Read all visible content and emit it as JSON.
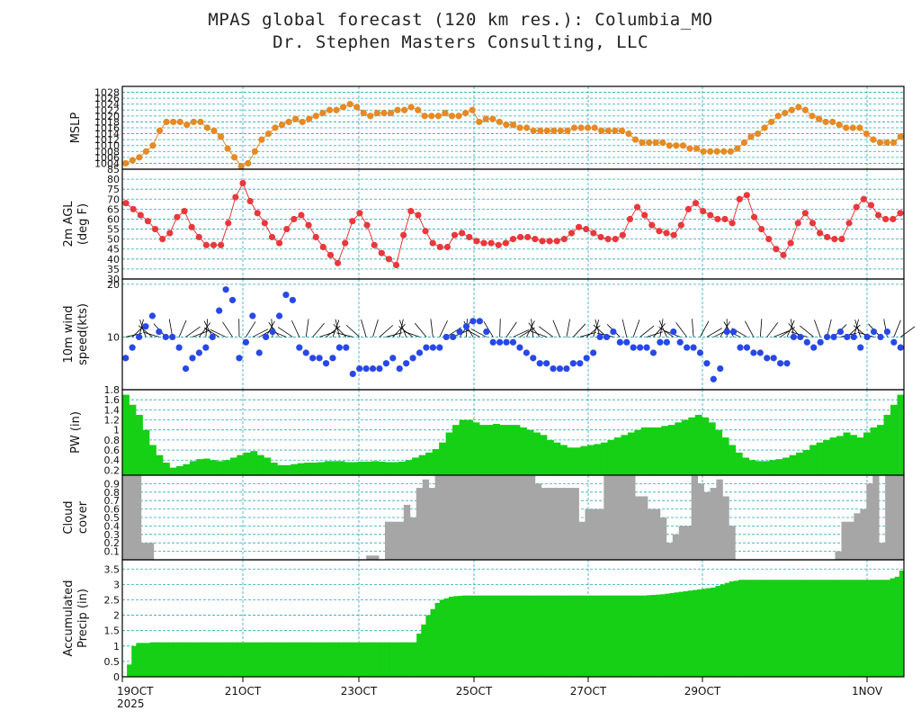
{
  "header": {
    "title": "MPAS global forecast (120 km res.): Columbia_MO",
    "subtitle": "Dr. Stephen Masters Consulting, LLC"
  },
  "colors": {
    "grid": "#2aa7b8",
    "mslp": "#e58a25",
    "temp": "#e8383c",
    "wind": "#2848e6",
    "pw": "#15d015",
    "cloud": "#a6a6a6",
    "precip": "#15d015"
  },
  "chart_data": [
    {
      "id": "mslp",
      "type": "line",
      "ylabel": [
        "MSLP"
      ],
      "ylim": [
        1002,
        1030
      ],
      "yticks": [
        1004,
        1006,
        1008,
        1010,
        1012,
        1014,
        1016,
        1018,
        1020,
        1022,
        1024,
        1026,
        1028
      ],
      "ytick_labels": [
        "1004",
        "1006",
        "1008",
        "1010",
        "1012",
        "1014",
        "1016",
        "1018",
        "1020",
        "1022",
        "1024",
        "1026",
        "1028"
      ],
      "values": [
        1004,
        1005,
        1006,
        1008,
        1010,
        1015,
        1018,
        1018,
        1018,
        1017,
        1018,
        1018,
        1016,
        1015,
        1013,
        1009,
        1006,
        1003,
        1004,
        1008,
        1012,
        1014,
        1016,
        1017,
        1018,
        1019,
        1018,
        1019,
        1020,
        1021,
        1022,
        1022,
        1023,
        1024,
        1023,
        1021,
        1020,
        1021,
        1021,
        1021,
        1022,
        1022,
        1023,
        1022,
        1020,
        1020,
        1020,
        1021,
        1020,
        1020,
        1021,
        1022,
        1018,
        1019,
        1019,
        1018,
        1017,
        1017,
        1016,
        1016,
        1015,
        1015,
        1015,
        1015,
        1015,
        1015,
        1016,
        1016,
        1016,
        1016,
        1015,
        1015,
        1015,
        1015,
        1014,
        1012,
        1011,
        1011,
        1011,
        1011,
        1010,
        1010,
        1010,
        1009,
        1009,
        1008,
        1008,
        1008,
        1008,
        1008,
        1009,
        1011,
        1013,
        1014,
        1016,
        1018,
        1020,
        1021,
        1022,
        1023,
        1022,
        1020,
        1019,
        1018,
        1018,
        1017,
        1016,
        1016,
        1016,
        1014,
        1012,
        1011,
        1011,
        1011,
        1013
      ]
    },
    {
      "id": "temp",
      "type": "line",
      "ylabel": [
        "2m AGL",
        "(deg F)"
      ],
      "ylim": [
        30,
        85
      ],
      "yticks": [
        30,
        35,
        40,
        45,
        50,
        55,
        60,
        65,
        70,
        75,
        80,
        85
      ],
      "ytick_labels": [
        "30",
        "35",
        "40",
        "45",
        "50",
        "55",
        "60",
        "65",
        "70",
        "75",
        "80",
        "85"
      ],
      "values": [
        68,
        65,
        62,
        59,
        55,
        50,
        53,
        61,
        64,
        56,
        51,
        47,
        47,
        47,
        58,
        71,
        78,
        69,
        63,
        58,
        51,
        48,
        55,
        60,
        62,
        57,
        51,
        46,
        42,
        38,
        48,
        59,
        63,
        57,
        47,
        43,
        40,
        37,
        52,
        64,
        62,
        54,
        48,
        46,
        46,
        52,
        53,
        51,
        49,
        48,
        48,
        47,
        48,
        50,
        51,
        51,
        50,
        49,
        49,
        49,
        50,
        53,
        56,
        55,
        53,
        51,
        50,
        50,
        52,
        60,
        66,
        62,
        57,
        54,
        53,
        52,
        57,
        65,
        68,
        64,
        62,
        60,
        60,
        58,
        70,
        72,
        61,
        55,
        50,
        45,
        42,
        48,
        58,
        63,
        58,
        53,
        51,
        50,
        50,
        58,
        66,
        70,
        67,
        62,
        60,
        60,
        63
      ]
    },
    {
      "id": "wind",
      "type": "scatter",
      "ylabel": [
        "10m wind",
        "speed(kts)"
      ],
      "ylim": [
        0,
        21
      ],
      "yticks": [
        10,
        20
      ],
      "ytick_labels": [
        "10",
        "20"
      ],
      "values": [
        6,
        8,
        10,
        12,
        14,
        11,
        10,
        10,
        8,
        4,
        6,
        7,
        8,
        10,
        15,
        19,
        17,
        6,
        9,
        14,
        7,
        10,
        11,
        14,
        18,
        17,
        8,
        7,
        6,
        6,
        5,
        6,
        8,
        8,
        3,
        4,
        4,
        4,
        4,
        5,
        6,
        4,
        5,
        6,
        7,
        8,
        8,
        8,
        10,
        10,
        11,
        12,
        13,
        13,
        11,
        9,
        9,
        9,
        9,
        8,
        7,
        6,
        5,
        5,
        4,
        4,
        4,
        5,
        5,
        6,
        7,
        10,
        10,
        11,
        9,
        9,
        8,
        8,
        8,
        7,
        9,
        9,
        11,
        9,
        8,
        8,
        7,
        5,
        2,
        4,
        11,
        11,
        8,
        8,
        7,
        7,
        6,
        6,
        5,
        5,
        10,
        10,
        9,
        8,
        9,
        10,
        10,
        11,
        10,
        10,
        8,
        10,
        11,
        10,
        11,
        9,
        8
      ]
    },
    {
      "id": "pw",
      "type": "bar",
      "ylabel": [
        "PW (in)"
      ],
      "ylim": [
        0.1,
        1.8
      ],
      "yticks": [
        0.2,
        0.4,
        0.6,
        0.8,
        1.0,
        1.2,
        1.4,
        1.6,
        1.8
      ],
      "ytick_labels": [
        "0.2",
        "0.4",
        "0.6",
        "0.8",
        "1",
        "1.2",
        "1.4",
        "1.6",
        "1.8"
      ],
      "values": [
        1.7,
        1.5,
        1.3,
        1.0,
        0.7,
        0.5,
        0.35,
        0.25,
        0.28,
        0.32,
        0.38,
        0.42,
        0.43,
        0.4,
        0.38,
        0.4,
        0.45,
        0.5,
        0.55,
        0.58,
        0.5,
        0.45,
        0.35,
        0.3,
        0.3,
        0.32,
        0.34,
        0.35,
        0.35,
        0.36,
        0.38,
        0.38,
        0.38,
        0.36,
        0.36,
        0.37,
        0.37,
        0.38,
        0.37,
        0.36,
        0.36,
        0.37,
        0.4,
        0.45,
        0.5,
        0.55,
        0.62,
        0.75,
        0.95,
        1.1,
        1.2,
        1.2,
        1.15,
        1.1,
        1.1,
        1.12,
        1.1,
        1.1,
        1.1,
        1.05,
        1.0,
        0.95,
        0.9,
        0.8,
        0.75,
        0.7,
        0.65,
        0.65,
        0.68,
        0.7,
        0.72,
        0.75,
        0.8,
        0.85,
        0.9,
        0.95,
        1.0,
        1.05,
        1.05,
        1.05,
        1.08,
        1.1,
        1.15,
        1.2,
        1.25,
        1.3,
        1.25,
        1.15,
        1.0,
        0.85,
        0.7,
        0.55,
        0.45,
        0.4,
        0.38,
        0.38,
        0.4,
        0.42,
        0.45,
        0.5,
        0.55,
        0.6,
        0.7,
        0.75,
        0.8,
        0.85,
        0.88,
        0.95,
        0.9,
        0.85,
        0.95,
        1.05,
        1.1,
        1.3,
        1.5,
        1.7
      ]
    },
    {
      "id": "cloud",
      "type": "bar",
      "ylabel": [
        "Cloud",
        "cover"
      ],
      "ylim": [
        0,
        1.0
      ],
      "yticks": [
        0.1,
        0.2,
        0.3,
        0.4,
        0.5,
        0.6,
        0.7,
        0.8,
        0.9
      ],
      "ytick_labels": [
        "0.1",
        "0.2",
        "0.3",
        "0.4",
        "0.5",
        "0.6",
        "0.7",
        "0.8",
        "0.9"
      ],
      "values": [
        1,
        1,
        1,
        0.2,
        0.2,
        0,
        0,
        0,
        0,
        0,
        0,
        0,
        0,
        0,
        0,
        0,
        0,
        0,
        0,
        0,
        0,
        0,
        0,
        0,
        0,
        0,
        0,
        0,
        0,
        0,
        0,
        0,
        0,
        0,
        0,
        0,
        0,
        0,
        0,
        0.05,
        0.05,
        0,
        0.45,
        0.45,
        0.45,
        0.65,
        0.5,
        0.85,
        0.95,
        0.85,
        1,
        1,
        1,
        1,
        1,
        1,
        1,
        1,
        1,
        1,
        1,
        1,
        1,
        1,
        1,
        1,
        0.9,
        0.85,
        0.85,
        0.85,
        0.85,
        0.85,
        0.85,
        0.45,
        0.6,
        0.6,
        0.6,
        1,
        1,
        1,
        1,
        1,
        0.75,
        0.75,
        0.6,
        0.6,
        0.5,
        0.2,
        0.3,
        0.4,
        0.4,
        1,
        0.9,
        0.8,
        0.85,
        0.95,
        0.75,
        0.4,
        0,
        0,
        0,
        0,
        0,
        0,
        0,
        0,
        0,
        0,
        0,
        0,
        0,
        0,
        0,
        0,
        0.1,
        0.45,
        0.45,
        0.55,
        0.6,
        0.9,
        1,
        0.2,
        1,
        1,
        1
      ]
    },
    {
      "id": "precip",
      "type": "area",
      "ylabel": [
        "Accumulated",
        "Precip (in)"
      ],
      "ylim": [
        0,
        3.8
      ],
      "yticks": [
        0,
        0.5,
        1,
        1.5,
        2,
        2.5,
        3,
        3.5
      ],
      "ytick_labels": [
        "0",
        "0.5",
        "1",
        "1.5",
        "2",
        "2.5",
        "3",
        "3.5"
      ],
      "values": [
        0.02,
        0.4,
        1.0,
        1.1,
        1.1,
        1.1,
        1.12,
        1.12,
        1.12,
        1.12,
        1.12,
        1.12,
        1.12,
        1.12,
        1.12,
        1.12,
        1.12,
        1.12,
        1.12,
        1.12,
        1.12,
        1.12,
        1.12,
        1.12,
        1.12,
        1.12,
        1.12,
        1.12,
        1.12,
        1.12,
        1.12,
        1.12,
        1.12,
        1.12,
        1.12,
        1.12,
        1.12,
        1.12,
        1.12,
        1.12,
        1.12,
        1.12,
        1.12,
        1.12,
        1.12,
        1.12,
        1.12,
        1.12,
        1.12,
        1.12,
        1.12,
        1.12,
        1.12,
        1.12,
        1.12,
        1.12,
        1.12,
        1.12,
        1.12,
        1.12,
        1.12,
        1.12,
        1.12,
        1.12,
        1.4,
        1.7,
        2.0,
        2.2,
        2.4,
        2.5,
        2.55,
        2.6,
        2.62,
        2.63,
        2.64,
        2.64,
        2.64,
        2.64,
        2.64,
        2.64,
        2.64,
        2.64,
        2.64,
        2.64,
        2.64,
        2.64,
        2.64,
        2.64,
        2.64,
        2.64,
        2.64,
        2.64,
        2.64,
        2.64,
        2.64,
        2.64,
        2.64,
        2.64,
        2.64,
        2.64,
        2.64,
        2.64,
        2.64,
        2.64,
        2.64,
        2.64,
        2.64,
        2.64,
        2.64,
        2.64,
        2.64,
        2.64,
        2.64,
        2.64,
        2.65,
        2.66,
        2.67,
        2.68,
        2.7,
        2.72,
        2.74,
        2.76,
        2.78,
        2.8,
        2.82,
        2.84,
        2.86,
        2.88,
        2.9,
        2.95,
        3.0,
        3.05,
        3.1,
        3.12,
        3.15,
        3.15,
        3.15,
        3.15,
        3.15,
        3.15,
        3.15,
        3.15,
        3.15,
        3.15,
        3.15,
        3.15,
        3.15,
        3.15,
        3.15,
        3.15,
        3.15,
        3.15,
        3.15,
        3.15,
        3.15,
        3.15,
        3.15,
        3.15,
        3.15,
        3.15,
        3.15,
        3.15,
        3.15,
        3.15,
        3.15,
        3.15,
        3.15,
        3.2,
        3.25,
        3.45
      ]
    }
  ],
  "x_axis": {
    "tick_labels": [
      "19OCT",
      "21OCT",
      "23OCT",
      "25OCT",
      "27OCT",
      "29OCT",
      "1NOV"
    ],
    "year_label": "2025"
  }
}
